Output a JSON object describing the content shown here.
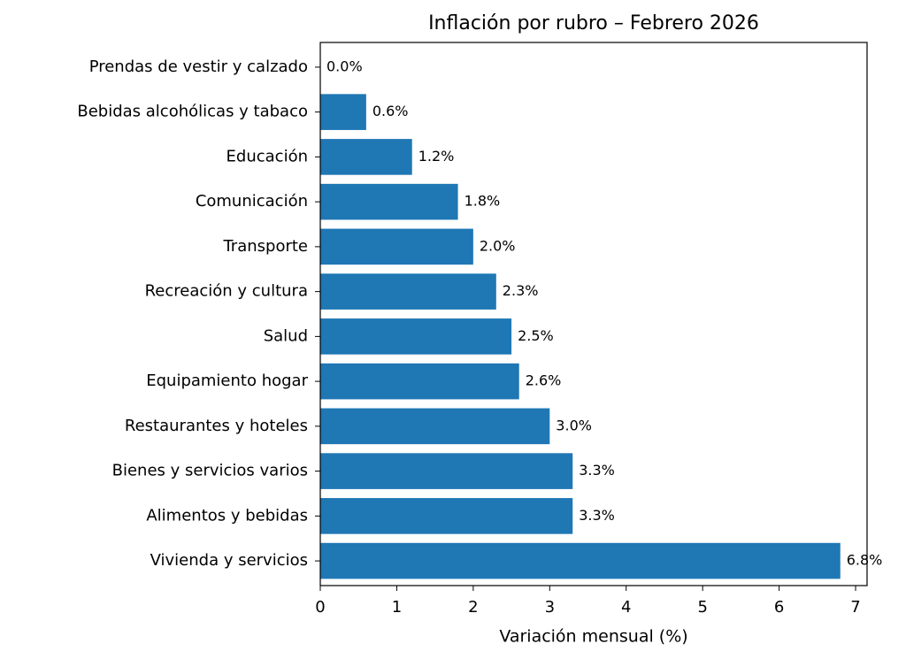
{
  "chart_data": {
    "type": "barh",
    "title": "Inflación por rubro – Febrero 2026",
    "xlabel": "Variación mensual (%)",
    "categories": [
      "Prendas de vestir y calzado",
      "Bebidas alcohólicas y tabaco",
      "Educación",
      "Comunicación",
      "Transporte",
      "Recreación y cultura",
      "Salud",
      "Equipamiento hogar",
      "Restaurantes y hoteles",
      "Bienes y servicios varios",
      "Alimentos y bebidas",
      "Vivienda y servicios"
    ],
    "values": [
      0.0,
      0.6,
      1.2,
      1.8,
      2.0,
      2.3,
      2.5,
      2.6,
      3.0,
      3.3,
      3.3,
      6.8
    ],
    "value_labels": [
      "0.0%",
      "0.6%",
      "1.2%",
      "1.8%",
      "2.0%",
      "2.3%",
      "2.5%",
      "2.6%",
      "3.0%",
      "3.3%",
      "3.3%",
      "6.8%"
    ],
    "color": "#1f77b4",
    "xlim": [
      0,
      7.15
    ],
    "xticks": [
      0,
      1,
      2,
      3,
      4,
      5,
      6,
      7
    ]
  }
}
